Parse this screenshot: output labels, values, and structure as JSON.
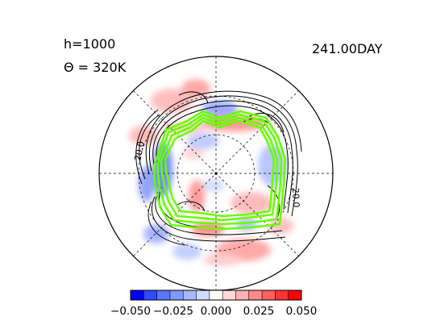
{
  "header": {
    "height_label": "h=1000",
    "theta_label": "Θ = 320K",
    "time_label": "241.00DAY"
  },
  "chart_data": {
    "type": "heatmap",
    "projection": "polar-stereographic",
    "contour_labels": [
      "20.0",
      "20.0"
    ],
    "colorbar": {
      "min": -0.05,
      "max": 0.05,
      "tick_labels": [
        "-0.050",
        "-0.025",
        "0.000",
        "0.025",
        "0.050"
      ],
      "colors": [
        "#0000ff",
        "#2f4bff",
        "#5a76ff",
        "#8099ff",
        "#a8b8ff",
        "#d2dbff",
        "#ffffff",
        "#ffd9d9",
        "#ffb0b0",
        "#ff8a8a",
        "#ff6060",
        "#ff3333",
        "#ff0000"
      ]
    },
    "green_contour_color": "#66ff00",
    "green_contour_count": 4,
    "grid": true
  }
}
